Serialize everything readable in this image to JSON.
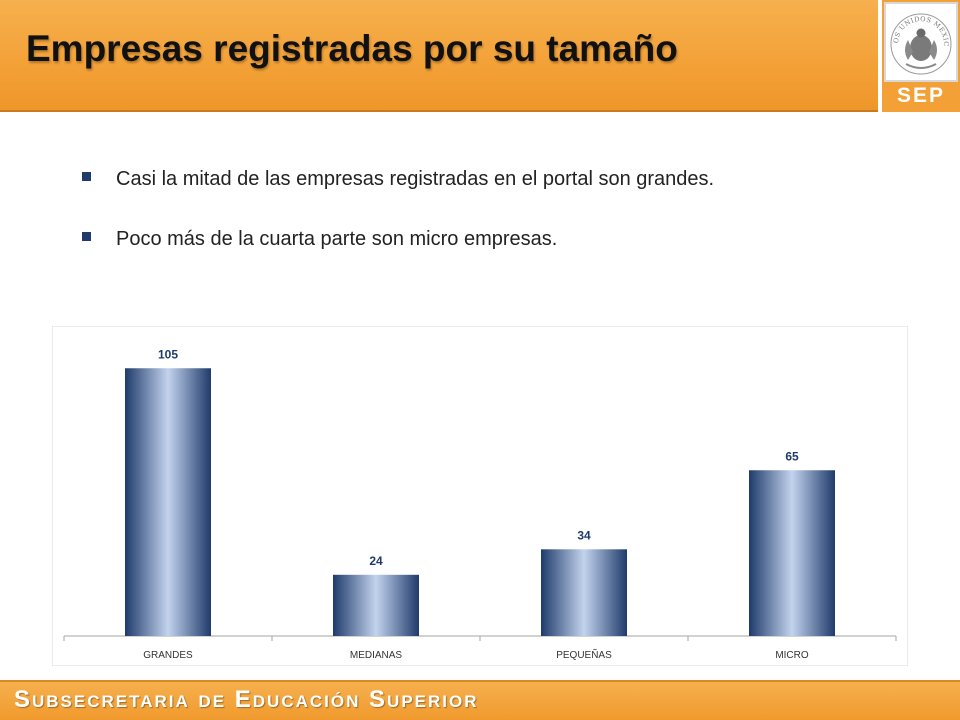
{
  "header": {
    "title": "Empresas registradas por su tamaño"
  },
  "logo": {
    "seal_text": "ESTADOS UNIDOS MEXICANOS",
    "label": "SEP"
  },
  "bullets": [
    {
      "text": "Casi la mitad de las empresas registradas en el portal son grandes."
    },
    {
      "text": "Poco más de la cuarta parte son micro empresas."
    }
  ],
  "chart_data": {
    "type": "bar",
    "categories": [
      "GRANDES",
      "MEDIANAS",
      "PEQUEÑAS",
      "MICRO"
    ],
    "values": [
      105,
      24,
      34,
      65
    ],
    "title": "",
    "xlabel": "",
    "ylabel": "",
    "ylim": [
      0,
      120
    ],
    "grid": false,
    "legend": "none",
    "data_labels": true,
    "colors": {
      "bar_edge": "#1f3b6b",
      "bar_center": "#c3d3ee",
      "label": "#1f3b6b"
    }
  },
  "footer": {
    "text": "Subsecretaria de Educación Superior"
  },
  "colors": {
    "accent": "#f3a137",
    "bullet": "#1f3b6b"
  }
}
